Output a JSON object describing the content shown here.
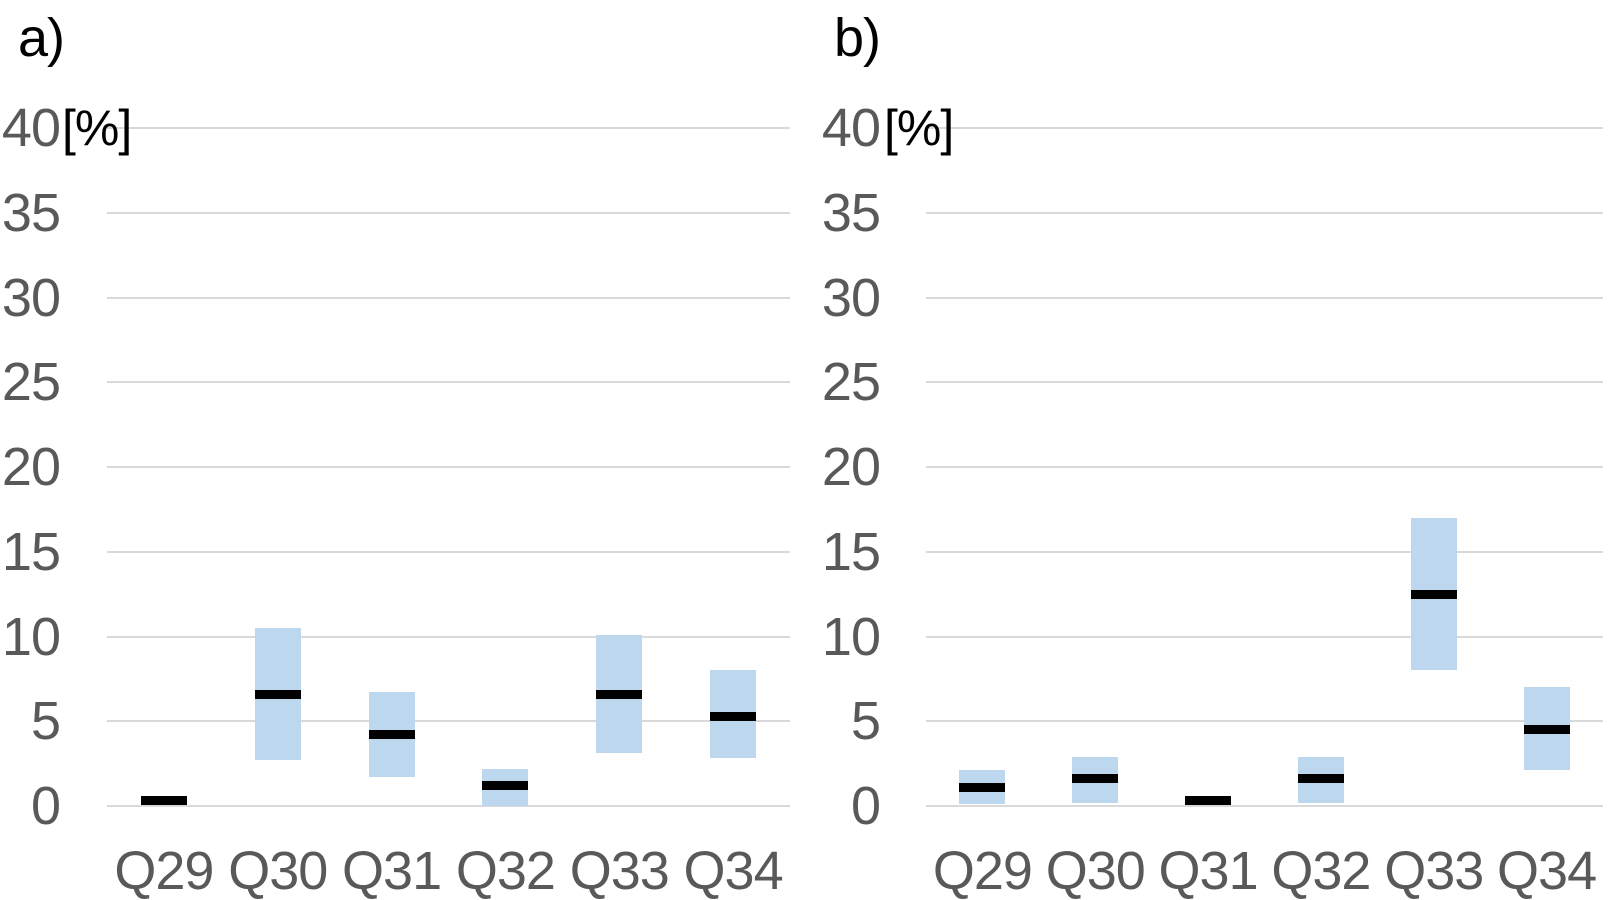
{
  "figure": {
    "background": "#ffffff",
    "panel_count": 2
  },
  "colors": {
    "range_fill": "#bdd7ee",
    "median_line": "#000000",
    "gridline": "#d9d9d9",
    "tick_label": "#595959",
    "panel_label": "#000000",
    "unit_label": "#000000"
  },
  "chart_data": [
    {
      "type": "bar",
      "subtype": "floating-range-with-median",
      "panel_label": "a)",
      "unit_label": "[%]",
      "title": "",
      "xlabel": "",
      "ylabel": "[%]",
      "ylim": [
        0,
        40
      ],
      "ytick_step": 5,
      "ytick_labels": [
        "0",
        "5",
        "10",
        "15",
        "20",
        "25",
        "30",
        "35",
        "40"
      ],
      "grid": true,
      "legend": false,
      "categories": [
        "Q29",
        "Q30",
        "Q31",
        "Q32",
        "Q33",
        "Q34"
      ],
      "series": [
        {
          "name": "range_low",
          "values": [
            null,
            2.7,
            1.7,
            0.0,
            3.1,
            2.8
          ]
        },
        {
          "name": "range_high",
          "values": [
            null,
            10.5,
            6.7,
            2.2,
            10.1,
            8.0
          ]
        },
        {
          "name": "median",
          "values": [
            0.3,
            6.6,
            4.2,
            1.2,
            6.6,
            5.3
          ]
        }
      ]
    },
    {
      "type": "bar",
      "subtype": "floating-range-with-median",
      "panel_label": "b)",
      "unit_label": "[%]",
      "title": "",
      "xlabel": "",
      "ylabel": "[%]",
      "ylim": [
        0,
        40
      ],
      "ytick_step": 5,
      "ytick_labels": [
        "0",
        "5",
        "10",
        "15",
        "20",
        "25",
        "30",
        "35",
        "40"
      ],
      "grid": true,
      "legend": false,
      "categories": [
        "Q29",
        "Q30",
        "Q31",
        "Q32",
        "Q33",
        "Q34"
      ],
      "series": [
        {
          "name": "range_low",
          "values": [
            0.1,
            0.2,
            null,
            0.2,
            8.0,
            2.1
          ]
        },
        {
          "name": "range_high",
          "values": [
            2.1,
            2.9,
            null,
            2.9,
            17.0,
            7.0
          ]
        },
        {
          "name": "median",
          "values": [
            1.1,
            1.6,
            0.3,
            1.6,
            12.5,
            4.5
          ]
        }
      ]
    }
  ]
}
